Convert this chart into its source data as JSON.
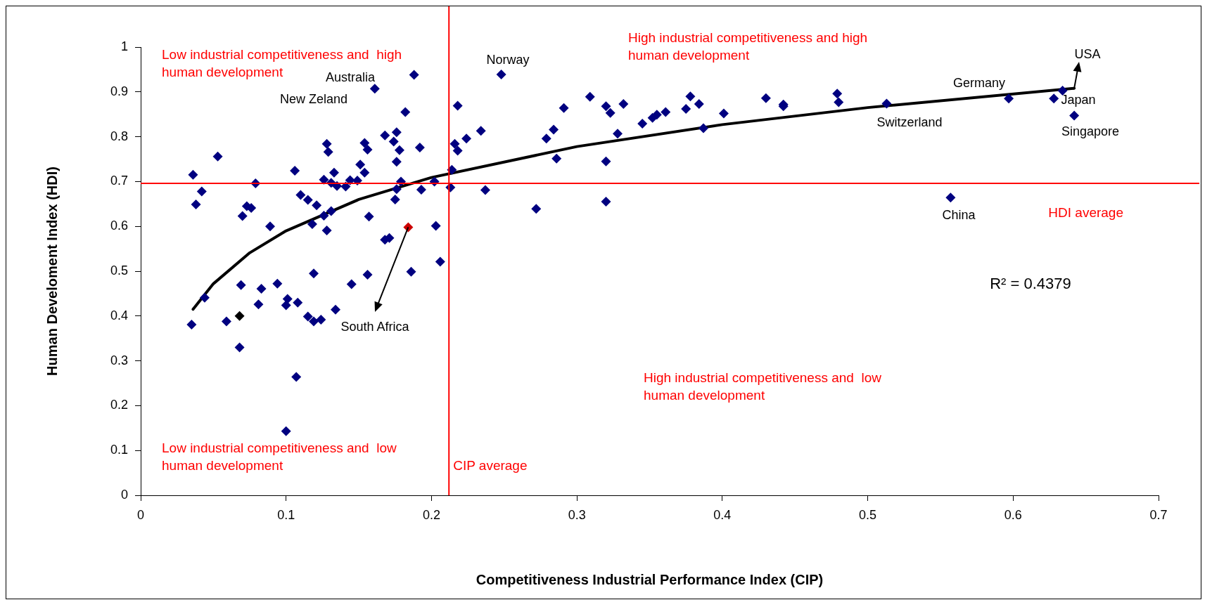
{
  "chart_data": {
    "type": "scatter",
    "xlabel": "Competitiveness Industrial Performance Index (CIP)",
    "ylabel": "Human Develoment Index (HDI)",
    "xlim": [
      0,
      0.7
    ],
    "xticks": [
      0,
      0.1,
      0.2,
      0.3,
      0.4,
      0.5,
      0.6,
      0.7
    ],
    "ylim": [
      0,
      1
    ],
    "yticks": [
      0,
      0.1,
      0.2,
      0.3,
      0.4,
      0.5,
      0.6,
      0.7,
      0.8,
      0.9,
      1
    ],
    "grid": false,
    "legend": false,
    "marker": "diamond",
    "series": [
      {
        "color": "#000080",
        "x": [
          0.188,
          0.161,
          0.218,
          0.182,
          0.168,
          0.176,
          0.128,
          0.129,
          0.154,
          0.156,
          0.174,
          0.178,
          0.216,
          0.218,
          0.224,
          0.192,
          0.176,
          0.053,
          0.036,
          0.042,
          0.038,
          0.079,
          0.106,
          0.133,
          0.151,
          0.154,
          0.126,
          0.131,
          0.135,
          0.141,
          0.144,
          0.149,
          0.179,
          0.176,
          0.175,
          0.193,
          0.202,
          0.213,
          0.214,
          0.11,
          0.115,
          0.121,
          0.073,
          0.076,
          0.07,
          0.126,
          0.131,
          0.089,
          0.118,
          0.128,
          0.157,
          0.203,
          0.168,
          0.171,
          0.206,
          0.119,
          0.156,
          0.186,
          0.069,
          0.083,
          0.094,
          0.145,
          0.044,
          0.081,
          0.101,
          0.1,
          0.108,
          0.134,
          0.035,
          0.059,
          0.115,
          0.119,
          0.124,
          0.068,
          0.107,
          0.1,
          0.248,
          0.234,
          0.237,
          0.272,
          0.279,
          0.284,
          0.286,
          0.291,
          0.309,
          0.32,
          0.323,
          0.32,
          0.32,
          0.328,
          0.332,
          0.345,
          0.352,
          0.355,
          0.361,
          0.375,
          0.378,
          0.384,
          0.387,
          0.401,
          0.43,
          0.442,
          0.442,
          0.479,
          0.48,
          0.513,
          0.597,
          0.628,
          0.634,
          0.642,
          0.557
        ],
        "values": [
          0.938,
          0.907,
          0.869,
          0.855,
          0.803,
          0.81,
          0.784,
          0.766,
          0.786,
          0.771,
          0.789,
          0.77,
          0.784,
          0.769,
          0.796,
          0.776,
          0.744,
          0.756,
          0.715,
          0.678,
          0.649,
          0.696,
          0.724,
          0.72,
          0.738,
          0.72,
          0.704,
          0.697,
          0.69,
          0.689,
          0.703,
          0.702,
          0.7,
          0.683,
          0.66,
          0.682,
          0.7,
          0.687,
          0.726,
          0.67,
          0.659,
          0.647,
          0.645,
          0.641,
          0.623,
          0.624,
          0.634,
          0.6,
          0.605,
          0.591,
          0.622,
          0.601,
          0.57,
          0.574,
          0.521,
          0.495,
          0.492,
          0.499,
          0.469,
          0.461,
          0.472,
          0.471,
          0.441,
          0.426,
          0.438,
          0.424,
          0.43,
          0.414,
          0.381,
          0.388,
          0.399,
          0.388,
          0.392,
          0.33,
          0.264,
          0.143,
          0.939,
          0.813,
          0.681,
          0.639,
          0.796,
          0.816,
          0.751,
          0.864,
          0.889,
          0.868,
          0.853,
          0.745,
          0.655,
          0.807,
          0.873,
          0.829,
          0.842,
          0.849,
          0.855,
          0.862,
          0.89,
          0.873,
          0.819,
          0.852,
          0.886,
          0.872,
          0.868,
          0.896,
          0.877,
          0.874,
          0.885,
          0.885,
          0.903,
          0.847,
          0.664
        ]
      },
      {
        "type": "scatter",
        "color": "#cc0000",
        "x": [
          0.184
        ],
        "values": [
          0.598
        ]
      },
      {
        "type": "scatter",
        "color": "#000000",
        "x": [
          0.068
        ],
        "values": [
          0.4
        ]
      },
      {
        "type": "line",
        "color": "#000000",
        "line_style": "solid",
        "marker": "none",
        "x": [
          0.036,
          0.05,
          0.075,
          0.1,
          0.15,
          0.2,
          0.3,
          0.4,
          0.5,
          0.642
        ],
        "values": [
          0.415,
          0.472,
          0.541,
          0.59,
          0.66,
          0.709,
          0.778,
          0.827,
          0.865,
          0.908
        ]
      }
    ],
    "ref_lines": [
      {
        "axis": "x",
        "value": 0.212,
        "label": "CIP average",
        "color": "#ff0000"
      },
      {
        "axis": "y",
        "value": 0.696,
        "label": "HDI average",
        "color": "#ff0000"
      }
    ],
    "annotations": [
      "Low industrial competitiveness and  high human development",
      "High industrial competitiveness and high human development",
      "High industrial competitiveness and  low human development",
      "Low industrial competitiveness and  low human development",
      "R² = 0.4379",
      "Australia",
      "New Zeland",
      "Norway",
      "South Africa",
      "Germany",
      "USA",
      "Japan",
      "Switzerland",
      "Singapore",
      "China"
    ]
  }
}
